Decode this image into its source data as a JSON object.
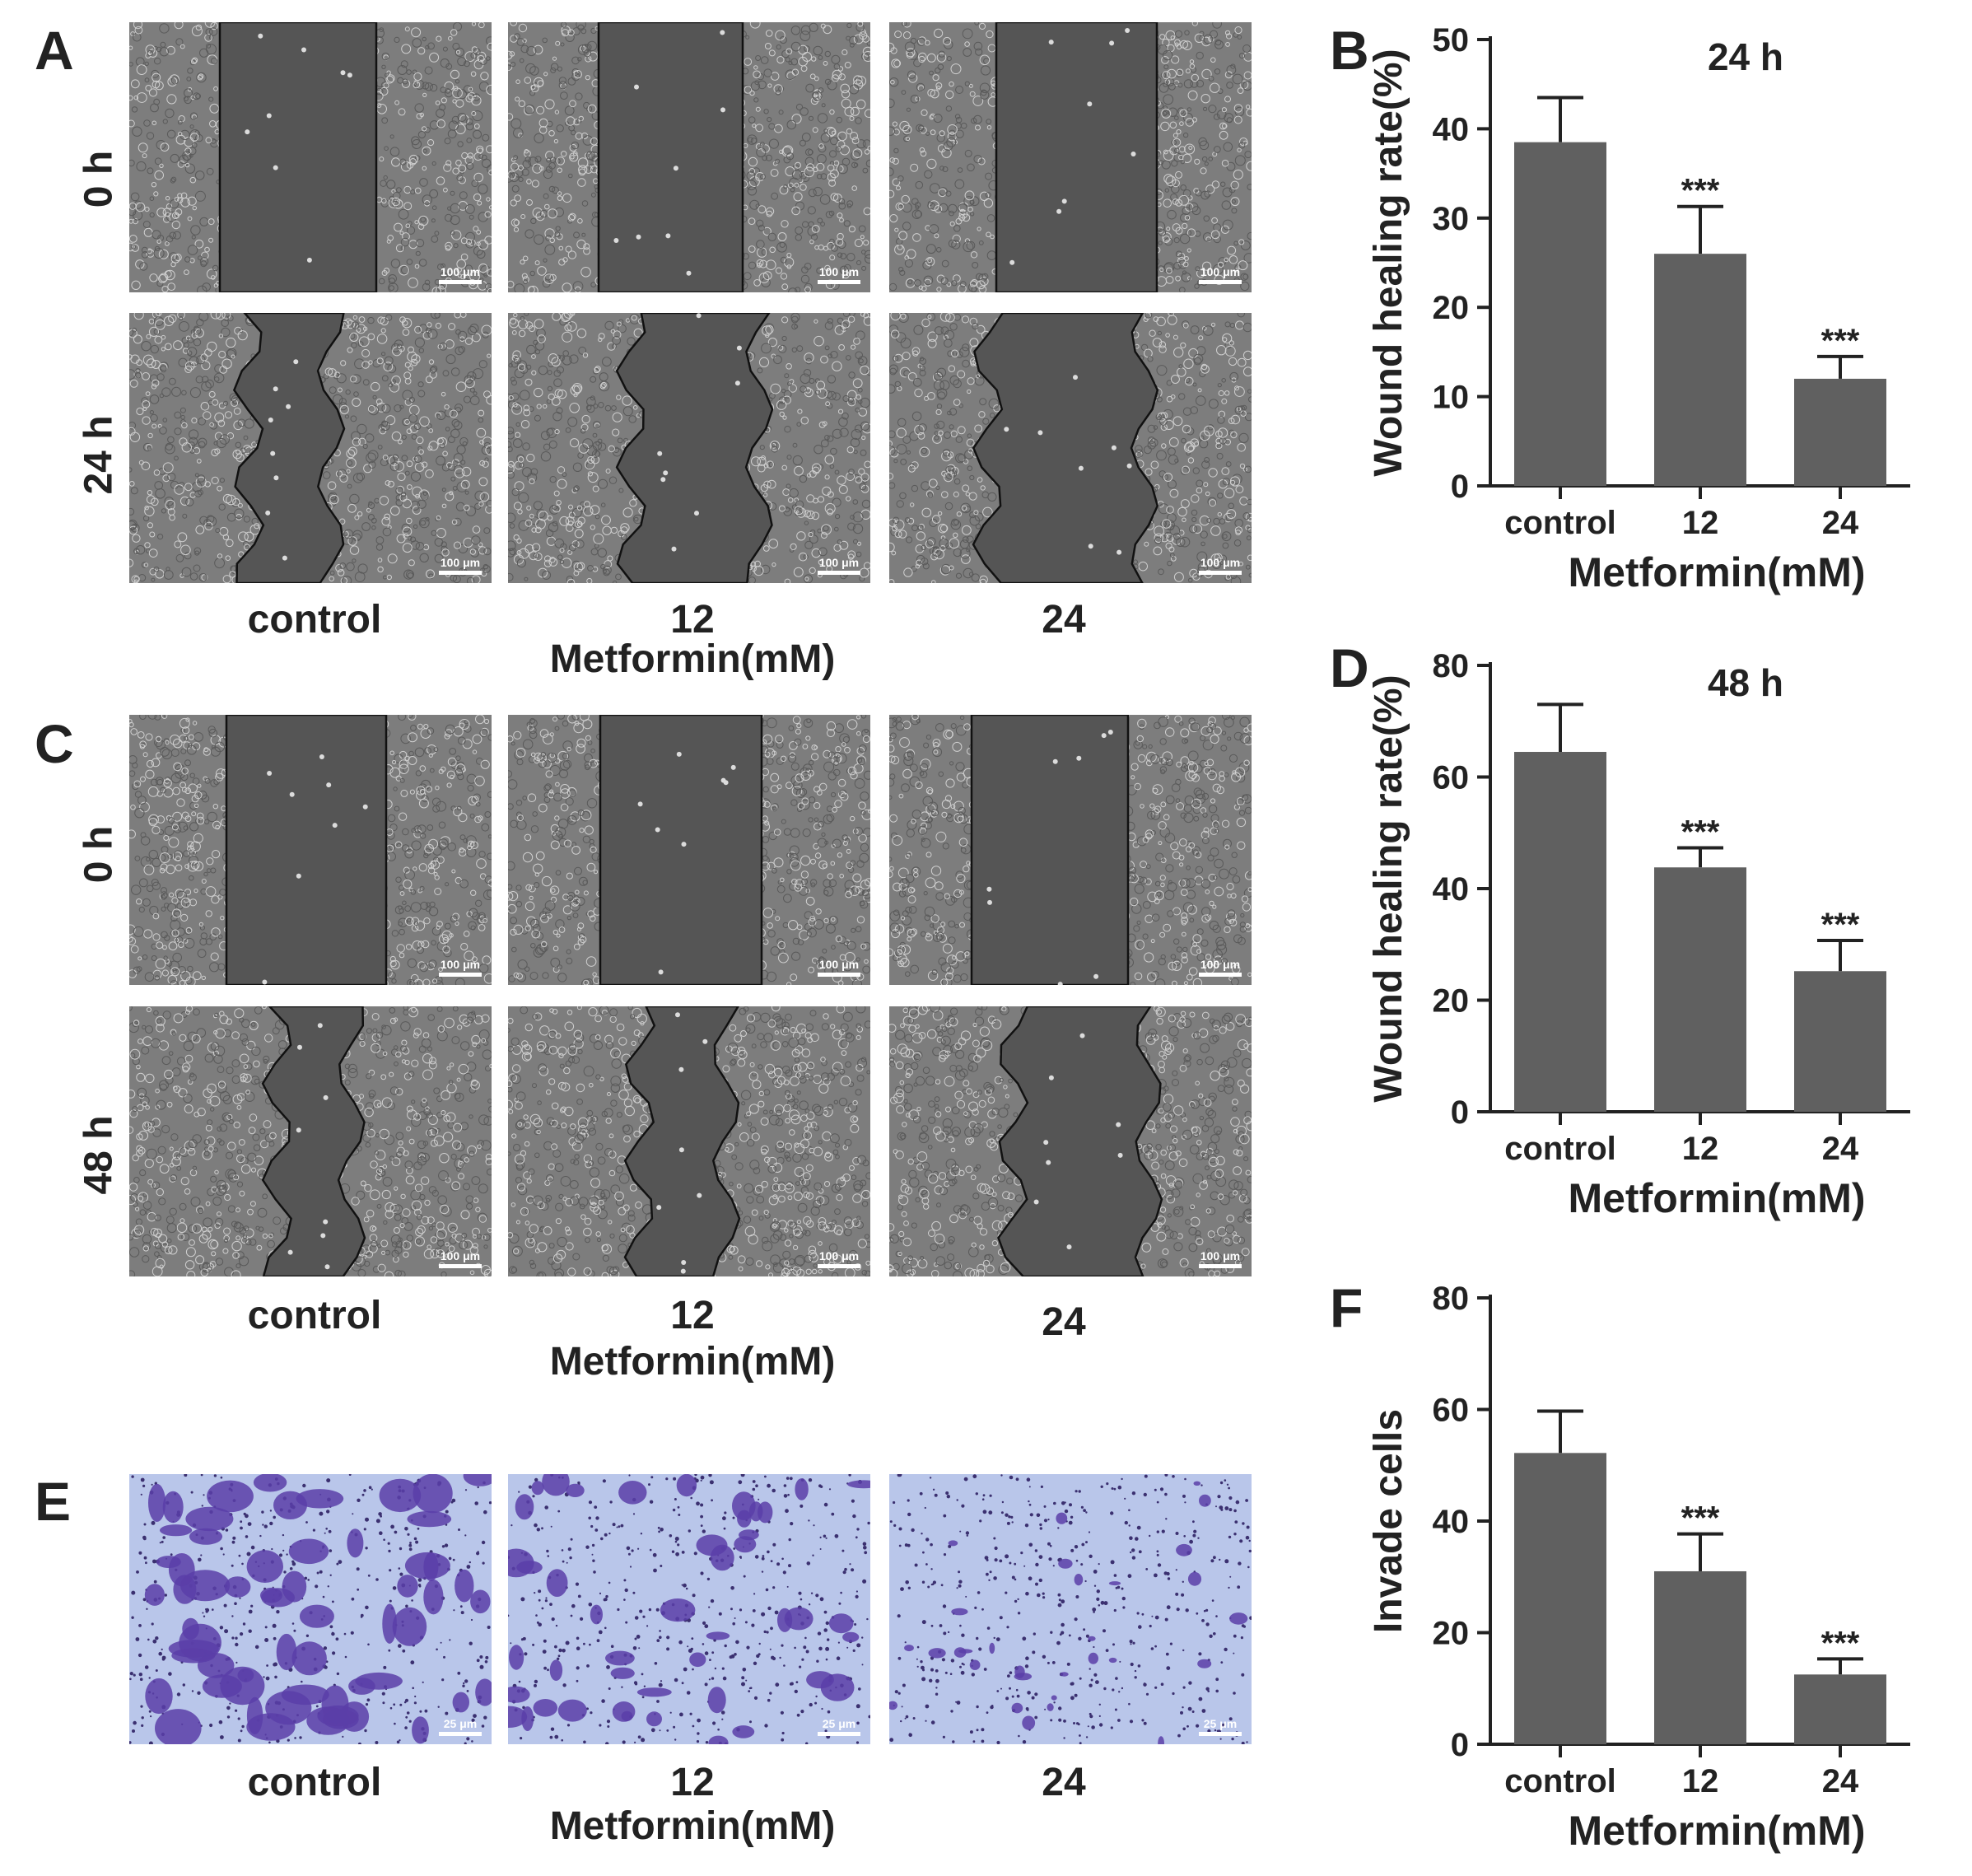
{
  "panels": {
    "A": "A",
    "B": "B",
    "C": "C",
    "D": "D",
    "E": "E",
    "F": "F"
  },
  "row_labels": {
    "A_top": "0 h",
    "A_bottom": "24 h",
    "C_top": "0 h",
    "C_bottom": "48 h"
  },
  "groups": [
    "control",
    "12",
    "24"
  ],
  "xlabel": "Metformin(mM)",
  "scale_wound": "100 μm",
  "scale_transwell": "25 μm",
  "colors": {
    "bar": "#606060",
    "stain": "#5a3ea8",
    "field": "#b9c6ea",
    "phase_bg": "#7d7d7d",
    "gap": "#555555"
  },
  "chart_data": [
    {
      "panel": "B",
      "type": "bar",
      "title": "24 h",
      "categories": [
        "control",
        "12",
        "24"
      ],
      "values": [
        38.5,
        26,
        12
      ],
      "errors": [
        5,
        5.3,
        2.5
      ],
      "significance": [
        "",
        "***",
        "***"
      ],
      "ylabel": "Wound healing rate(%)",
      "xlabel": "Metformin(mM)",
      "ylim": [
        0,
        50
      ],
      "yticks": [
        0,
        10,
        20,
        30,
        40,
        50
      ]
    },
    {
      "panel": "D",
      "type": "bar",
      "title": "48 h",
      "categories": [
        "control",
        "12",
        "24"
      ],
      "values": [
        64.5,
        43.8,
        25.2
      ],
      "errors": [
        8.5,
        3.5,
        5.5
      ],
      "significance": [
        "",
        "***",
        "***"
      ],
      "ylabel": "Wound healing rate(%)",
      "xlabel": "Metformin(mM)",
      "ylim": [
        0,
        80
      ],
      "yticks": [
        0,
        20,
        40,
        60,
        80
      ]
    },
    {
      "panel": "F",
      "type": "bar",
      "title": "",
      "categories": [
        "control",
        "12",
        "24"
      ],
      "values": [
        52.2,
        31,
        12.5
      ],
      "errors": [
        7.5,
        6.7,
        2.8
      ],
      "significance": [
        "",
        "***",
        "***"
      ],
      "ylabel": "Invade cells",
      "xlabel": "Metformin(mM)",
      "ylim": [
        0,
        80
      ],
      "yticks": [
        0,
        20,
        40,
        60,
        80
      ]
    }
  ]
}
